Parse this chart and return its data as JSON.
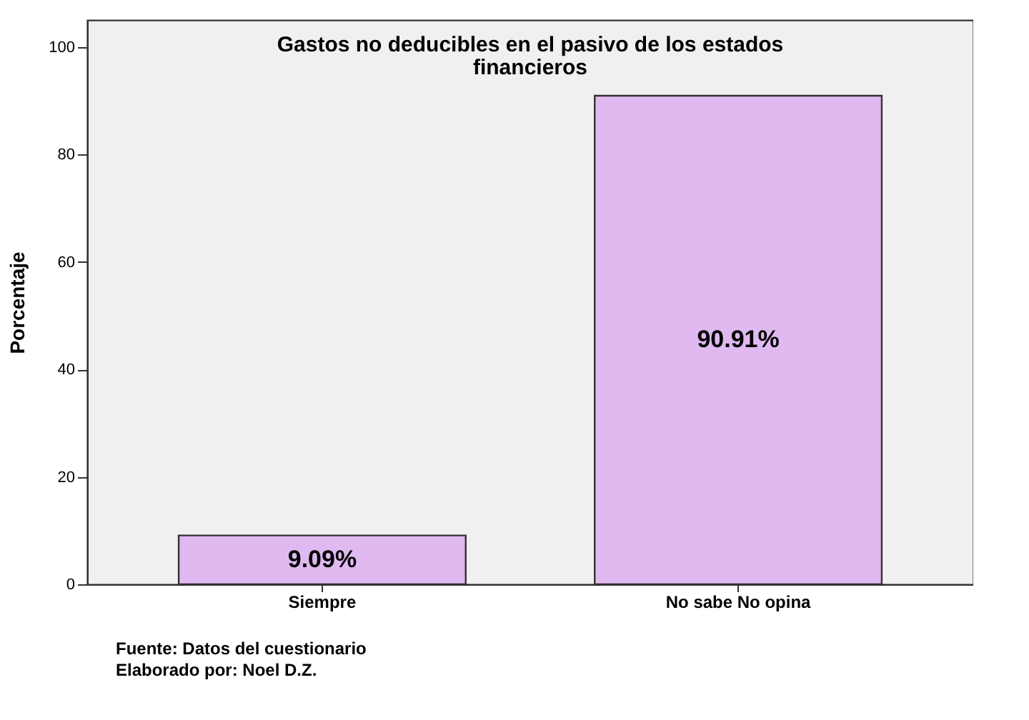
{
  "chart_data": {
    "type": "bar",
    "title": "Gastos no deducibles en el pasivo de los estados financieros",
    "ylabel": "Porcentaje",
    "categories": [
      "Siempre",
      "No sabe No opina"
    ],
    "values": [
      9.09,
      90.91
    ],
    "value_labels": [
      "9.09%",
      "90.91%"
    ],
    "color": "#dfb9f0",
    "ylim": [
      0,
      105
    ],
    "yticks": [
      0,
      20,
      40,
      60,
      80,
      100
    ],
    "grid": false,
    "annotations": [
      "Fuente: Datos del cuestionario",
      "Elaborado por: Noel D.Z."
    ]
  }
}
